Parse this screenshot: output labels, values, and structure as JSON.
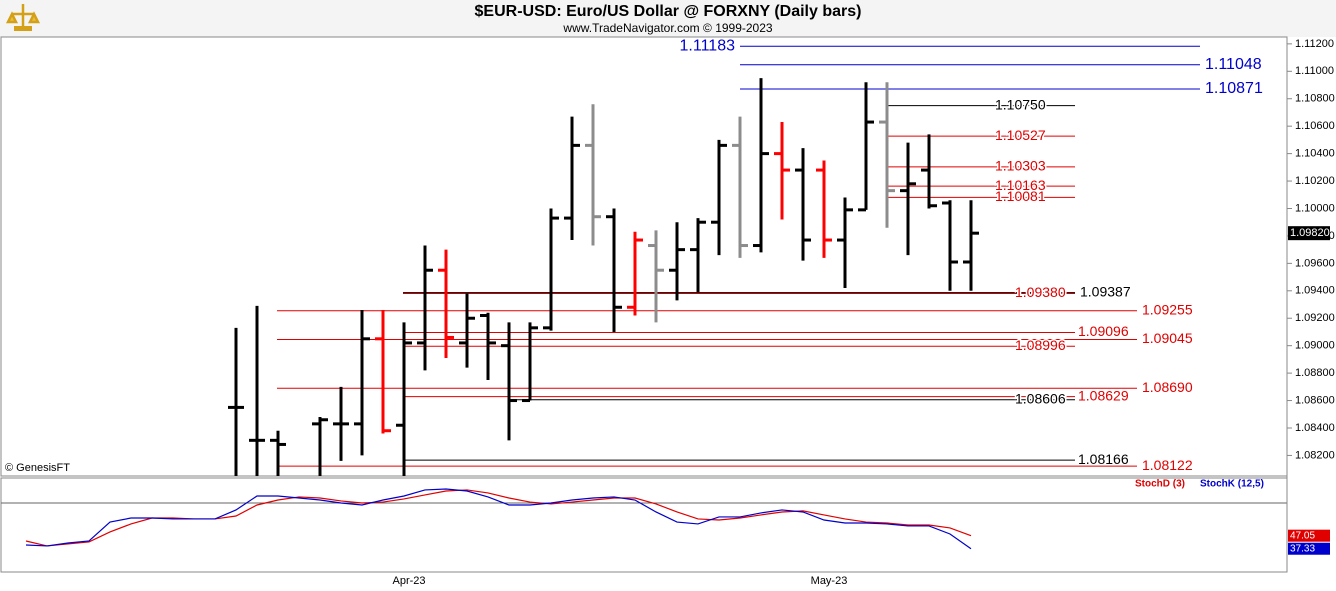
{
  "chart_data": [
    {
      "type": "ohlc",
      "title": "$EUR-USD:  Euro/US Dollar @ FORXNY  (Daily bars)",
      "subtitle": "www.TradeNavigator.com © 1999-2023",
      "note": "© GenesisFT",
      "ylim": [
        1.0805,
        1.1125
      ],
      "yticks": [
        {
          "value": 1.082,
          "label": "1.08200"
        },
        {
          "value": 1.084,
          "label": "1.08400"
        },
        {
          "value": 1.086,
          "label": "1.08600"
        },
        {
          "value": 1.088,
          "label": "1.08800"
        },
        {
          "value": 1.09,
          "label": "1.09000"
        },
        {
          "value": 1.092,
          "label": "1.09200"
        },
        {
          "value": 1.094,
          "label": "1.09400"
        },
        {
          "value": 1.096,
          "label": "1.09600"
        },
        {
          "value": 1.098,
          "label": "1.09800"
        },
        {
          "value": 1.1,
          "label": "1.10000"
        },
        {
          "value": 1.102,
          "label": "1.10200"
        },
        {
          "value": 1.104,
          "label": "1.10400"
        },
        {
          "value": 1.106,
          "label": "1.10600"
        },
        {
          "value": 1.108,
          "label": "1.10800"
        },
        {
          "value": 1.11,
          "label": "1.11000"
        },
        {
          "value": 1.112,
          "label": "1.11200"
        }
      ],
      "open": [
        null,
        null,
        null,
        null,
        null,
        null,
        null,
        null,
        null,
        null,
        1.0855,
        1.0831,
        1.0831,
        null,
        1.0843,
        1.0843,
        1.0843,
        1.0905,
        1.0842,
        1.0902,
        1.0955,
        1.0902,
        1.0922,
        1.09,
        1.086,
        1.0913,
        1.0993,
        1.1046,
        1.0994,
        1.0928,
        1.0973,
        1.0955,
        1.097,
        1.099,
        1.1046,
        1.0973,
        1.104,
        1.1028,
        1.1028,
        1.0977,
        1.0999,
        1.1063,
        1.1013,
        1.1028,
        1.1004,
        1.0961
      ],
      "high": [
        null,
        null,
        null,
        null,
        null,
        null,
        null,
        null,
        null,
        null,
        1.0913,
        1.0929,
        1.0838,
        null,
        1.0848,
        1.087,
        1.0926,
        1.0926,
        1.0917,
        1.0973,
        1.097,
        1.0938,
        1.0924,
        1.0917,
        1.0917,
        1.1,
        1.1067,
        1.1076,
        1.1,
        1.0983,
        1.0984,
        1.099,
        1.0993,
        1.105,
        1.1067,
        1.1095,
        1.1063,
        1.1044,
        1.1035,
        1.1008,
        1.1092,
        1.1092,
        1.1048,
        1.1054,
        1.1006,
        1.1006
      ],
      "low": [
        null,
        null,
        null,
        null,
        null,
        null,
        null,
        null,
        null,
        null,
        1.0802,
        1.0803,
        1.0803,
        null,
        1.0803,
        1.0816,
        1.082,
        1.0836,
        1.0803,
        1.0882,
        1.0891,
        1.0884,
        1.0875,
        1.0831,
        1.086,
        1.0911,
        1.0977,
        1.0973,
        1.091,
        1.0922,
        1.0917,
        1.0933,
        1.0939,
        1.0966,
        1.0964,
        1.0968,
        1.0992,
        1.0962,
        1.0964,
        1.0942,
        1.0999,
        1.0986,
        1.0966,
        1.1,
        1.094,
        1.094
      ],
      "close": [
        null,
        null,
        null,
        null,
        null,
        null,
        null,
        null,
        null,
        null,
        1.0855,
        1.0831,
        1.0828,
        null,
        1.0846,
        1.0843,
        1.0905,
        1.0838,
        1.0902,
        1.0955,
        1.0906,
        1.092,
        1.0902,
        1.086,
        1.0913,
        1.0993,
        1.1046,
        1.0994,
        1.0928,
        1.0977,
        1.0955,
        1.097,
        1.099,
        1.1046,
        1.0973,
        1.104,
        1.1028,
        1.0977,
        1.0977,
        1.0999,
        1.1063,
        1.1013,
        1.1018,
        1.1002,
        1.0961,
        1.0982
      ],
      "colors": [
        null,
        null,
        null,
        null,
        null,
        null,
        null,
        null,
        null,
        null,
        "#000000",
        "#000000",
        "#000000",
        null,
        "#000000",
        "#000000",
        "#000000",
        "#ff0000",
        "#000000",
        "#000000",
        "#ff0000",
        "#000000",
        "#000000",
        "#000000",
        "#000000",
        "#000000",
        "#000000",
        "#8c8c8c",
        "#000000",
        "#ff0000",
        "#8c8c8c",
        "#000000",
        "#000000",
        "#000000",
        "#8c8c8c",
        "#000000",
        "#ff0000",
        "#000000",
        "#ff0000",
        "#000000",
        "#000000",
        "#8c8c8c",
        "#000000",
        "#000000",
        "#000000",
        "#000000"
      ],
      "last_price": {
        "value": 1.0982,
        "label": "1.09820"
      },
      "levels": [
        {
          "value": 1.11183,
          "label": "1.11183",
          "color": "#0000cc"
        },
        {
          "value": 1.11048,
          "label": "1.11048",
          "color": "#0000cc"
        },
        {
          "value": 1.10871,
          "label": "1.10871",
          "color": "#0000cc"
        },
        {
          "value": 1.1075,
          "label": "1.10750",
          "color": "#000000"
        },
        {
          "value": 1.10527,
          "label": "1.10527",
          "color": "#e00000"
        },
        {
          "value": 1.10303,
          "label": "1.10303",
          "color": "#e00000"
        },
        {
          "value": 1.10163,
          "label": "1.10163",
          "color": "#e00000"
        },
        {
          "value": 1.10081,
          "label": "1.10081",
          "color": "#e00000"
        },
        {
          "value": 1.0938,
          "label": "1.09380",
          "color": "#e00000"
        },
        {
          "value": 1.09387,
          "label": "1.09387",
          "color": "#000000"
        },
        {
          "value": 1.09255,
          "label": "1.09255",
          "color": "#e00000"
        },
        {
          "value": 1.09096,
          "label": "1.09096",
          "color": "#e00000"
        },
        {
          "value": 1.09045,
          "label": "1.09045",
          "color": "#e00000"
        },
        {
          "value": 1.08996,
          "label": "1.08996",
          "color": "#e00000"
        },
        {
          "value": 1.0869,
          "label": "1.08690",
          "color": "#e00000"
        },
        {
          "value": 1.08629,
          "label": "1.08629",
          "color": "#e00000"
        },
        {
          "value": 1.08606,
          "label": "1.08606",
          "color": "#000000"
        },
        {
          "value": 1.08166,
          "label": "1.08166",
          "color": "#000000"
        },
        {
          "value": 1.08122,
          "label": "1.08122",
          "color": "#e00000"
        }
      ]
    },
    {
      "type": "line",
      "categories": [
        null,
        null,
        null,
        null,
        null,
        null,
        null,
        null,
        null,
        null,
        null,
        null,
        null,
        null,
        null,
        null,
        null,
        null,
        "Apr-23",
        null,
        null,
        null,
        null,
        null,
        null,
        null,
        null,
        null,
        null,
        null,
        null,
        null,
        null,
        null,
        null,
        null,
        null,
        null,
        "May-23",
        null,
        null,
        null,
        null,
        null,
        null,
        null
      ],
      "ylim": [
        20,
        90
      ],
      "series": [
        {
          "name": "StochD (3)",
          "color": "#e00000",
          "values": [
            43.1,
            39.4,
            40.9,
            42.4,
            49.8,
            55.8,
            60.2,
            60.2,
            59.5,
            59.5,
            61.7,
            69.9,
            73.6,
            75.9,
            75.1,
            72.9,
            71.4,
            72.1,
            74.4,
            77.4,
            80.3,
            81.1,
            78.9,
            75.1,
            72.1,
            70.7,
            72.1,
            73.6,
            75.1,
            75.1,
            70.7,
            64.7,
            59.5,
            58.7,
            60.2,
            62.5,
            64.7,
            65.5,
            62.5,
            59.5,
            57.2,
            56.5,
            55.0,
            55.0,
            52.8,
            47.05
          ]
        },
        {
          "name": "StochK (12,5)",
          "color": "#0000cc",
          "values": [
            40.1,
            39.4,
            41.6,
            43.1,
            57.2,
            60.2,
            60.2,
            59.5,
            59.5,
            59.5,
            66.2,
            76.6,
            76.6,
            75.1,
            73.6,
            71.4,
            69.9,
            73.6,
            76.6,
            81.1,
            81.8,
            80.3,
            75.9,
            69.9,
            69.9,
            71.4,
            73.6,
            75.1,
            75.9,
            73.6,
            64.7,
            57.2,
            55.8,
            61.0,
            61.0,
            64.0,
            66.2,
            64.7,
            58.7,
            56.5,
            56.5,
            55.8,
            54.3,
            54.3,
            48.3,
            37.33
          ]
        }
      ]
    }
  ]
}
